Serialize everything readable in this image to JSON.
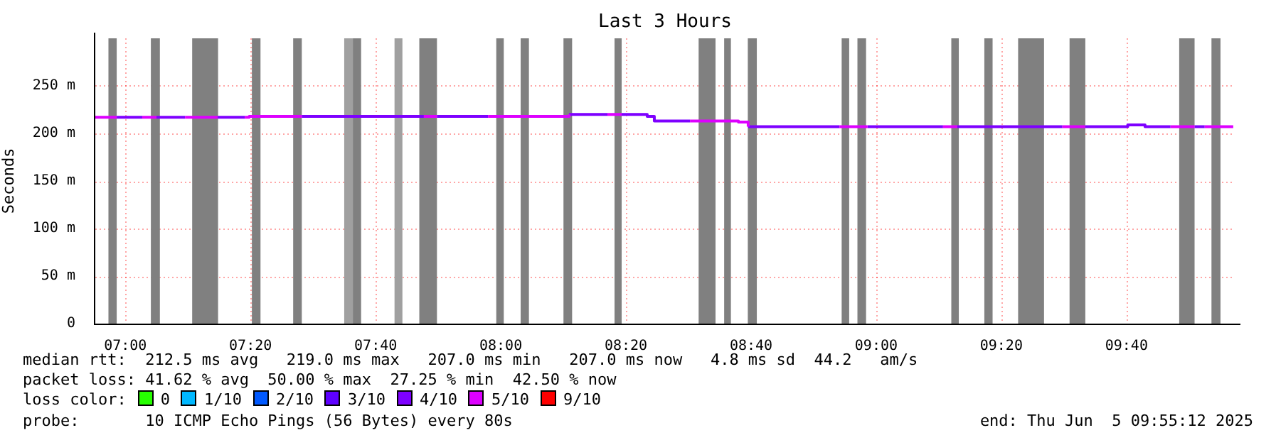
{
  "chart_data": {
    "type": "step",
    "title": "Last 3 Hours",
    "ylabel": "Seconds",
    "xlim": [
      6.92,
      9.955
    ],
    "xticks": [
      {
        "value": 7,
        "label": "07:00"
      },
      {
        "value": 7.3333,
        "label": "07:20"
      },
      {
        "value": 7.6667,
        "label": "07:40"
      },
      {
        "value": 8,
        "label": "08:00"
      },
      {
        "value": 8.3333,
        "label": "08:20"
      },
      {
        "value": 8.6667,
        "label": "08:40"
      },
      {
        "value": 9,
        "label": "09:00"
      },
      {
        "value": 9.3333,
        "label": "09:20"
      },
      {
        "value": 9.6667,
        "label": "09:40"
      }
    ],
    "ylim": [
      0,
      300
    ],
    "yticks": [
      {
        "value": 0,
        "label": "0"
      },
      {
        "value": 50,
        "label": "50 m"
      },
      {
        "value": 100,
        "label": "100 m"
      },
      {
        "value": 150,
        "label": "150 m"
      },
      {
        "value": 200,
        "label": "200 m"
      },
      {
        "value": 250,
        "label": "250 m"
      }
    ],
    "grid": true,
    "legend": "bottom",
    "legend_title": "loss color:",
    "bands": [
      {
        "axis": "x",
        "from": 6.955,
        "to": 6.977,
        "color": "#808080"
      },
      {
        "axis": "x",
        "from": 7.068,
        "to": 7.092,
        "color": "#808080"
      },
      {
        "axis": "x",
        "from": 7.178,
        "to": 7.247,
        "color": "#808080"
      },
      {
        "axis": "x",
        "from": 7.337,
        "to": 7.36,
        "color": "#808080"
      },
      {
        "axis": "x",
        "from": 7.447,
        "to": 7.47,
        "color": "#808080"
      },
      {
        "axis": "x",
        "from": 7.583,
        "to": 7.606,
        "color": "#a0a0a0"
      },
      {
        "axis": "x",
        "from": 7.606,
        "to": 7.628,
        "color": "#808080"
      },
      {
        "axis": "x",
        "from": 7.717,
        "to": 7.738,
        "color": "#a0a0a0"
      },
      {
        "axis": "x",
        "from": 7.783,
        "to": 7.83,
        "color": "#808080"
      },
      {
        "axis": "x",
        "from": 7.988,
        "to": 8.008,
        "color": "#808080"
      },
      {
        "axis": "x",
        "from": 8.053,
        "to": 8.075,
        "color": "#808080"
      },
      {
        "axis": "x",
        "from": 8.167,
        "to": 8.19,
        "color": "#808080"
      },
      {
        "axis": "x",
        "from": 8.303,
        "to": 8.322,
        "color": "#808080"
      },
      {
        "axis": "x",
        "from": 8.527,
        "to": 8.572,
        "color": "#808080"
      },
      {
        "axis": "x",
        "from": 8.595,
        "to": 8.613,
        "color": "#808080"
      },
      {
        "axis": "x",
        "from": 8.658,
        "to": 8.682,
        "color": "#808080"
      },
      {
        "axis": "x",
        "from": 8.908,
        "to": 8.928,
        "color": "#808080"
      },
      {
        "axis": "x",
        "from": 8.95,
        "to": 8.973,
        "color": "#808080"
      },
      {
        "axis": "x",
        "from": 9.2,
        "to": 9.22,
        "color": "#808080"
      },
      {
        "axis": "x",
        "from": 9.288,
        "to": 9.31,
        "color": "#808080"
      },
      {
        "axis": "x",
        "from": 9.378,
        "to": 9.447,
        "color": "#808080"
      },
      {
        "axis": "x",
        "from": 9.515,
        "to": 9.557,
        "color": "#808080"
      },
      {
        "axis": "x",
        "from": 9.807,
        "to": 9.848,
        "color": "#808080"
      },
      {
        "axis": "x",
        "from": 9.893,
        "to": 9.917,
        "color": "#808080"
      }
    ],
    "series": [
      {
        "color": "#dd00ff",
        "x": [
          6.92,
          6.977,
          null,
          7.045,
          7.083,
          null,
          7.159,
          7.246,
          null,
          7.318,
          7.33,
          7.47,
          null,
          7.795,
          7.83,
          null,
          7.966,
          8.182,
          null,
          8.284,
          8.322,
          null,
          8.504,
          8.633,
          8.659,
          null,
          8.902,
          8.977,
          null,
          9.178,
          9.216,
          null,
          9.496,
          9.557,
          null,
          9.784,
          9.848,
          null,
          9.875,
          9.951
        ],
        "values": [
          217,
          217,
          null,
          217,
          217,
          null,
          217,
          217,
          null,
          217,
          218,
          218,
          null,
          218,
          218,
          null,
          218,
          220,
          null,
          220,
          220,
          null,
          213,
          212,
          207,
          null,
          207,
          207,
          null,
          207,
          207,
          null,
          207,
          207,
          null,
          207,
          207,
          null,
          207,
          207
        ]
      },
      {
        "color": "#7e00ff",
        "x": [
          6.977,
          7.045,
          null,
          7.083,
          7.159,
          null,
          7.246,
          7.318,
          null,
          7.47,
          7.795,
          null,
          7.83,
          7.966,
          null,
          8.182,
          8.284,
          null,
          8.322,
          8.39,
          8.409,
          8.504,
          null,
          8.659,
          8.902,
          null,
          8.977,
          9.178,
          null,
          9.216,
          9.496,
          null,
          9.557,
          9.67,
          9.716,
          9.784,
          null,
          9.848,
          9.875
        ],
        "values": [
          217,
          217,
          null,
          217,
          217,
          null,
          217,
          217,
          null,
          218,
          218,
          null,
          218,
          218,
          null,
          220,
          220,
          null,
          220,
          218,
          213,
          213,
          null,
          207,
          207,
          null,
          207,
          207,
          null,
          207,
          207,
          null,
          207,
          209,
          207,
          207,
          null,
          207,
          207
        ]
      },
      {
        "name": "0",
        "color": "#26ff00"
      },
      {
        "name": "1/10",
        "color": "#00b8ff"
      },
      {
        "name": "2/10",
        "color": "#0059ff"
      },
      {
        "name": "3/10",
        "color": "#5e00ff"
      },
      {
        "name": "4/10",
        "color": "#7e00ff"
      },
      {
        "name": "5/10",
        "color": "#dd00ff"
      },
      {
        "name": "9/10",
        "color": "#ff0000"
      }
    ],
    "annotations": [
      "median rtt:  212.5 ms avg   219.0 ms max   207.0 ms min   207.0 ms now   4.8 ms sd  44.2   am/s",
      "packet loss: 41.62 % avg  50.00 % max  27.25 % min  42.50 % now",
      "probe:       10 ICMP Echo Pings (56 Bytes) every 80s",
      "end: Thu Jun  5 09:55:12 2025"
    ]
  }
}
